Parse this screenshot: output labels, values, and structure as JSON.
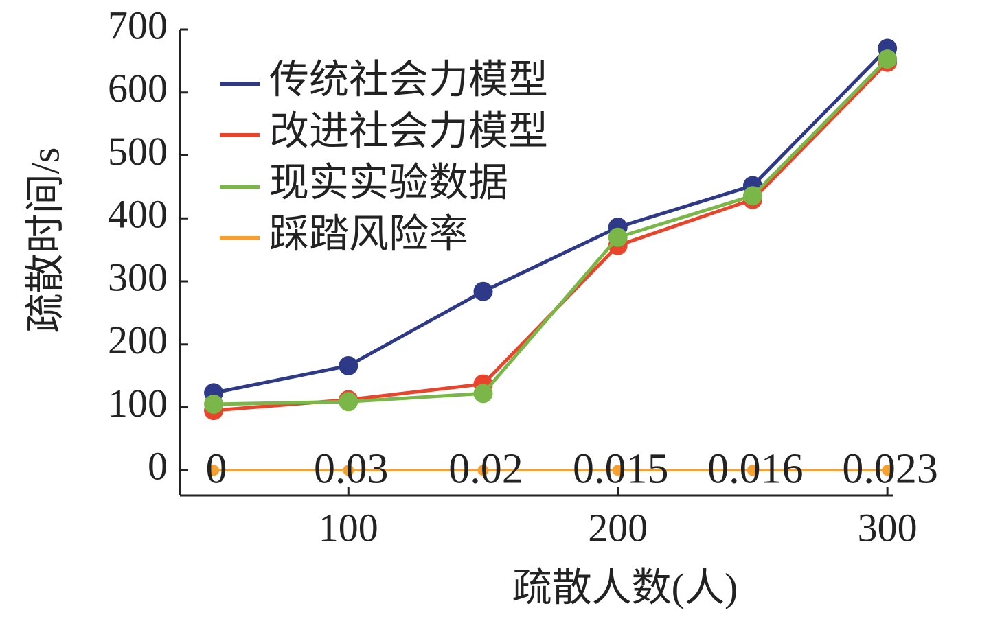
{
  "chart_data": {
    "type": "line",
    "x_label": "疏散人数(人)",
    "y_label": "疏散时间/s",
    "x": [
      50,
      100,
      150,
      200,
      250,
      300
    ],
    "series": [
      {
        "name": "传统社会力模型",
        "color": "#2e3a87",
        "values": [
          123,
          166,
          284,
          386,
          452,
          670
        ]
      },
      {
        "name": "改进社会力模型",
        "color": "#e8452c",
        "values": [
          95,
          112,
          137,
          357,
          430,
          648
        ]
      },
      {
        "name": "现实实验数据",
        "color": "#7ab648",
        "values": [
          105,
          109,
          122,
          370,
          436,
          653
        ]
      },
      {
        "name": "踩踏风险率",
        "color": "#f5a030",
        "values": [
          0,
          0.03,
          0.02,
          0.015,
          0.016,
          0.023
        ],
        "show_value_labels": true
      }
    ],
    "xlim": [
      37.5,
      302
    ],
    "xticks": [
      100,
      200,
      300
    ],
    "ylim": [
      -40,
      700
    ],
    "yticks": [
      0,
      100,
      200,
      300,
      400,
      500,
      600,
      700
    ],
    "legend": "upper left"
  }
}
